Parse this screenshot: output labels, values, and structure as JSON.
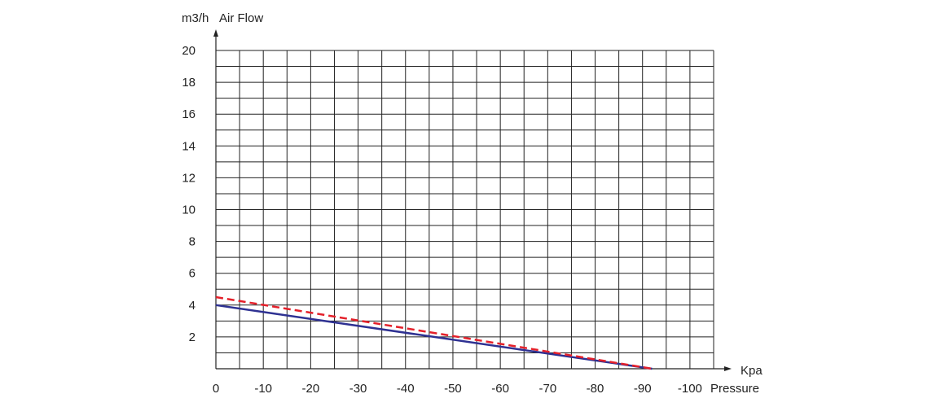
{
  "chart_data": {
    "type": "line",
    "y_unit": "m3/h",
    "y_title": "Air Flow",
    "x_unit": "Kpa",
    "x_title": "Pressure",
    "xlim": [
      0,
      -105
    ],
    "ylim": [
      0,
      20
    ],
    "x_ticks": [
      0,
      -10,
      -20,
      -30,
      -40,
      -50,
      -60,
      -70,
      -80,
      -90,
      -100
    ],
    "x_tick_labels": [
      "0",
      "-10",
      "-20",
      "-30",
      "-40",
      "-50",
      "-60",
      "-70",
      "-80",
      "-90",
      "-100"
    ],
    "y_ticks": [
      2,
      4,
      6,
      8,
      10,
      12,
      14,
      16,
      18,
      20
    ],
    "y_tick_labels": [
      "2",
      "4",
      "6",
      "8",
      "10",
      "12",
      "14",
      "16",
      "18",
      "20"
    ],
    "grid": true,
    "series": [
      {
        "style": "solid",
        "color": "#2e3192",
        "x": [
          0,
          -92
        ],
        "y": [
          4.0,
          0.0
        ]
      },
      {
        "style": "dashed",
        "color": "#e4202a",
        "x": [
          0,
          -92
        ],
        "y": [
          4.5,
          0.0
        ]
      }
    ]
  }
}
